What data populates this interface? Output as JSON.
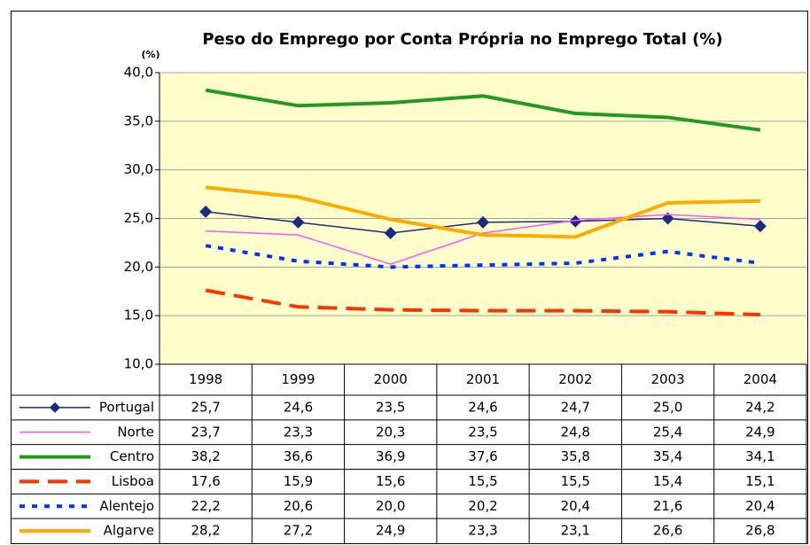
{
  "chart_data": {
    "type": "line",
    "title": "Peso do Emprego por Conta Própria no Emprego Total (%)",
    "y_label": "(%)",
    "categories": [
      "1998",
      "1999",
      "2000",
      "2001",
      "2002",
      "2003",
      "2004"
    ],
    "ylim": [
      10,
      40
    ],
    "yticks": [
      {
        "value": 10,
        "label": "10,0"
      },
      {
        "value": 15,
        "label": "15,0"
      },
      {
        "value": 20,
        "label": "20,0"
      },
      {
        "value": 25,
        "label": "25,0"
      },
      {
        "value": 30,
        "label": "30,0"
      },
      {
        "value": 35,
        "label": "35,0"
      },
      {
        "value": 40,
        "label": "40,0"
      }
    ],
    "grid": true,
    "series": [
      {
        "name": "Portugal",
        "color": "#1a2a80",
        "line_style": "solid",
        "line_weight": "thin",
        "marker": "diamond",
        "values": [
          25.7,
          24.6,
          23.5,
          24.6,
          24.7,
          25.0,
          24.2
        ],
        "value_labels": [
          "25,7",
          "24,6",
          "23,5",
          "24,6",
          "24,7",
          "25,0",
          "24,2"
        ]
      },
      {
        "name": "Norte",
        "color": "#ff55ff",
        "line_style": "solid",
        "line_weight": "thin",
        "marker": "none",
        "values": [
          23.7,
          23.3,
          20.3,
          23.5,
          24.8,
          25.4,
          24.9
        ],
        "value_labels": [
          "23,7",
          "23,3",
          "20,3",
          "23,5",
          "24,8",
          "25,4",
          "24,9"
        ]
      },
      {
        "name": "Centro",
        "color": "#229a22",
        "line_style": "solid",
        "line_weight": "thick",
        "marker": "none",
        "values": [
          38.2,
          36.6,
          36.9,
          37.6,
          35.8,
          35.4,
          34.1
        ],
        "value_labels": [
          "38,2",
          "36,6",
          "36,9",
          "37,6",
          "35,8",
          "35,4",
          "34,1"
        ]
      },
      {
        "name": "Lisboa",
        "color": "#ff3300",
        "line_style": "dashed",
        "line_weight": "thick",
        "marker": "none",
        "values": [
          17.6,
          15.9,
          15.6,
          15.5,
          15.5,
          15.4,
          15.1
        ],
        "value_labels": [
          "17,6",
          "15,9",
          "15,6",
          "15,5",
          "15,5",
          "15,4",
          "15,1"
        ]
      },
      {
        "name": "Alentejo",
        "color": "#0033ff",
        "line_style": "dotted",
        "line_weight": "thick",
        "marker": "none",
        "values": [
          22.2,
          20.6,
          20.0,
          20.2,
          20.4,
          21.6,
          20.4
        ],
        "value_labels": [
          "22,2",
          "20,6",
          "20,0",
          "20,2",
          "20,4",
          "21,6",
          "20,4"
        ]
      },
      {
        "name": "Algarve",
        "color": "#ffaa00",
        "line_style": "solid",
        "line_weight": "thick",
        "marker": "none",
        "values": [
          28.2,
          27.2,
          24.9,
          23.3,
          23.1,
          26.6,
          26.8
        ],
        "value_labels": [
          "28,2",
          "27,2",
          "24,9",
          "23,3",
          "23,1",
          "26,6",
          "26,8"
        ]
      }
    ]
  }
}
